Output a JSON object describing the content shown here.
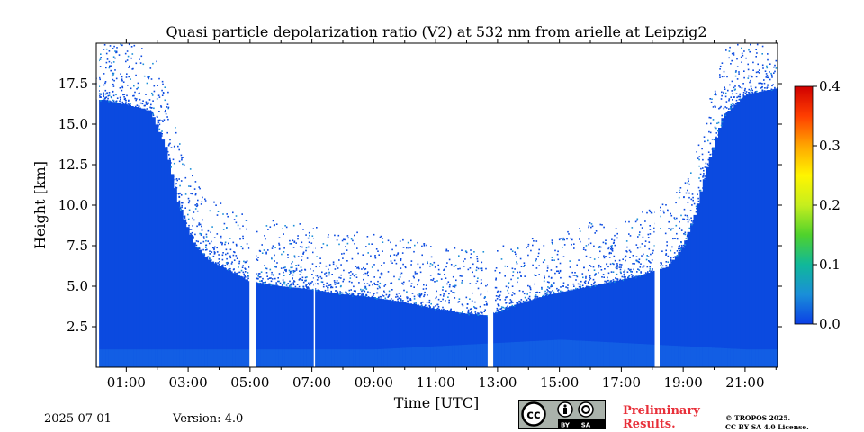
{
  "chart_data": {
    "type": "heatmap",
    "title": "Quasi particle depolarization ratio (V2) at 532 nm from arielle at Leipzig2",
    "xlabel": "Time [UTC]",
    "ylabel": "Height [km]",
    "x_ticks": [
      "01:00",
      "03:00",
      "05:00",
      "07:00",
      "09:00",
      "11:00",
      "13:00",
      "15:00",
      "17:00",
      "19:00",
      "21:00"
    ],
    "x_tick_hours": [
      1,
      3,
      5,
      7,
      9,
      11,
      13,
      15,
      17,
      19,
      21
    ],
    "xlim_hours": [
      0.03,
      22.05
    ],
    "y_ticks": [
      "2.5",
      "5.0",
      "7.5",
      "10.0",
      "12.5",
      "15.0",
      "17.5"
    ],
    "y_tick_values": [
      2.5,
      5.0,
      7.5,
      10.0,
      12.5,
      15.0,
      17.5
    ],
    "ylim_km": [
      0.0,
      20.0
    ],
    "colorbar": {
      "ticks": [
        "0.0",
        "0.1",
        "0.2",
        "0.3",
        "0.4"
      ],
      "tick_values": [
        0.0,
        0.1,
        0.2,
        0.3,
        0.4
      ],
      "range": [
        0.0,
        0.4
      ],
      "colors": [
        "#0b3fe6",
        "#1a8fd8",
        "#10b89a",
        "#4fd22c",
        "#c6ee1e",
        "#fff500",
        "#ffa600",
        "#ff3e00",
        "#d00000"
      ]
    },
    "signal_top_km": [
      [
        0.3,
        16.5
      ],
      [
        1.0,
        16.2
      ],
      [
        1.8,
        15.8
      ],
      [
        2.3,
        13.5
      ],
      [
        2.7,
        10.0
      ],
      [
        3.2,
        7.6
      ],
      [
        3.7,
        6.6
      ],
      [
        4.3,
        6.0
      ],
      [
        5.0,
        5.3
      ],
      [
        6.0,
        5.0
      ],
      [
        7.0,
        4.8
      ],
      [
        8.0,
        4.5
      ],
      [
        9.0,
        4.3
      ],
      [
        10.0,
        4.0
      ],
      [
        11.0,
        3.6
      ],
      [
        12.0,
        3.3
      ],
      [
        12.7,
        3.2
      ],
      [
        13.5,
        3.8
      ],
      [
        14.5,
        4.4
      ],
      [
        15.5,
        4.8
      ],
      [
        16.5,
        5.2
      ],
      [
        17.5,
        5.6
      ],
      [
        18.5,
        6.2
      ],
      [
        19.0,
        7.4
      ],
      [
        19.4,
        9.5
      ],
      [
        19.8,
        12.5
      ],
      [
        20.3,
        15.5
      ],
      [
        21.0,
        16.8
      ],
      [
        22.0,
        17.2
      ]
    ],
    "gaps_hours": [
      [
        0.05,
        0.12
      ],
      [
        4.98,
        5.18
      ],
      [
        7.06,
        7.1
      ],
      [
        12.68,
        12.86
      ],
      [
        18.08,
        18.24
      ]
    ]
  },
  "footer": {
    "date": "2025-07-01",
    "version": "Version: 4.0",
    "preliminary_line1": "Preliminary",
    "preliminary_line2": "Results.",
    "license_line1": "© TROPOS 2025.",
    "license_line2": "CC BY SA 4.0 License.",
    "cc_text": "cc",
    "by_text": "BY",
    "sa_text": "SA"
  }
}
